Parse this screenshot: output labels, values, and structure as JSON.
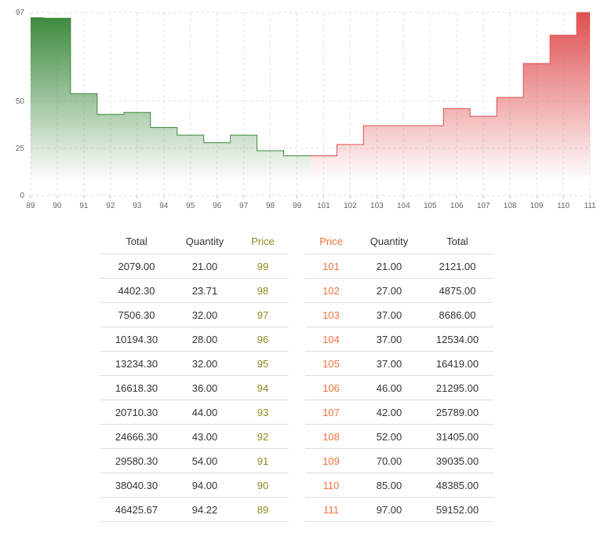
{
  "chart_data": {
    "type": "area",
    "step": true,
    "x_ticks": [
      89,
      90,
      91,
      92,
      93,
      94,
      95,
      96,
      97,
      98,
      99,
      101,
      102,
      103,
      104,
      105,
      106,
      107,
      108,
      109,
      110,
      111
    ],
    "y_ticks": [
      0,
      25,
      50,
      97
    ],
    "ylim": [
      0,
      97
    ],
    "grid": true,
    "series": [
      {
        "side": "bid",
        "color": "#3d8a3d",
        "x": [
          89,
          90,
          91,
          92,
          93,
          94,
          95,
          96,
          97,
          98,
          99
        ],
        "y": [
          94.22,
          94.0,
          54.0,
          43.0,
          44.0,
          36.0,
          32.0,
          28.0,
          32.0,
          23.71,
          21.0
        ]
      },
      {
        "side": "ask",
        "color": "#df4f4f",
        "x": [
          101,
          102,
          103,
          104,
          105,
          106,
          107,
          108,
          109,
          110,
          111
        ],
        "y": [
          21.0,
          27.0,
          37.0,
          37.0,
          37.0,
          46.0,
          42.0,
          52.0,
          70.0,
          85.0,
          97.0
        ]
      }
    ]
  },
  "bids": {
    "headers": {
      "total": "Total",
      "quantity": "Quantity",
      "price": "Price"
    },
    "rows": [
      {
        "total": "2079.00",
        "quantity": "21.00",
        "price": "99"
      },
      {
        "total": "4402.30",
        "quantity": "23.71",
        "price": "98"
      },
      {
        "total": "7506.30",
        "quantity": "32.00",
        "price": "97"
      },
      {
        "total": "10194.30",
        "quantity": "28.00",
        "price": "96"
      },
      {
        "total": "13234.30",
        "quantity": "32.00",
        "price": "95"
      },
      {
        "total": "16618.30",
        "quantity": "36.00",
        "price": "94"
      },
      {
        "total": "20710.30",
        "quantity": "44.00",
        "price": "93"
      },
      {
        "total": "24666.30",
        "quantity": "43.00",
        "price": "92"
      },
      {
        "total": "29580.30",
        "quantity": "54.00",
        "price": "91"
      },
      {
        "total": "38040.30",
        "quantity": "94.00",
        "price": "90"
      },
      {
        "total": "46425.67",
        "quantity": "94.22",
        "price": "89"
      }
    ]
  },
  "asks": {
    "headers": {
      "price": "Price",
      "quantity": "Quantity",
      "total": "Total"
    },
    "rows": [
      {
        "price": "101",
        "quantity": "21.00",
        "total": "2121.00"
      },
      {
        "price": "102",
        "quantity": "27.00",
        "total": "4875.00"
      },
      {
        "price": "103",
        "quantity": "37.00",
        "total": "8686.00"
      },
      {
        "price": "104",
        "quantity": "37.00",
        "total": "12534.00"
      },
      {
        "price": "105",
        "quantity": "37.00",
        "total": "16419.00"
      },
      {
        "price": "106",
        "quantity": "46.00",
        "total": "21295.00"
      },
      {
        "price": "107",
        "quantity": "42.00",
        "total": "25789.00"
      },
      {
        "price": "108",
        "quantity": "52.00",
        "total": "31405.00"
      },
      {
        "price": "109",
        "quantity": "70.00",
        "total": "39035.00"
      },
      {
        "price": "110",
        "quantity": "85.00",
        "total": "48385.00"
      },
      {
        "price": "111",
        "quantity": "97.00",
        "total": "59152.00"
      }
    ]
  }
}
